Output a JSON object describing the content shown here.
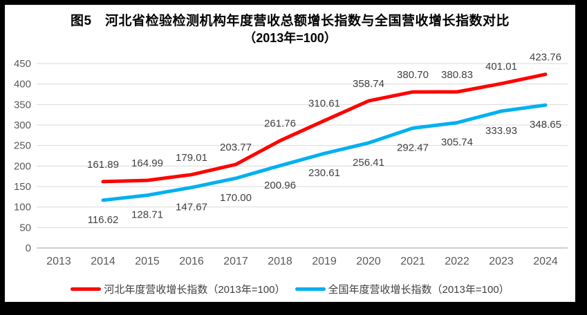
{
  "window": {
    "frame_color": "#000000",
    "chart_background": "#ffffff"
  },
  "title": {
    "line1": "图5　河北省检验检测机构年度营收总额增长指数与全国营收增长指数对比",
    "line2": "（2013年=100）"
  },
  "chart_data": {
    "type": "line",
    "categories": [
      "2013",
      "2014",
      "2015",
      "2016",
      "2017",
      "2018",
      "2019",
      "2020",
      "2021",
      "2022",
      "2023",
      "2024"
    ],
    "ylim": [
      0,
      450
    ],
    "y_ticks": [
      0,
      50,
      100,
      150,
      200,
      250,
      300,
      350,
      400,
      450
    ],
    "grid": true,
    "legend_position": "bottom",
    "series": [
      {
        "key": "hebei",
        "name": "河北年度营收增长指数（2013年=100）",
        "color": "#FF0000",
        "first_category_index": 1,
        "values": [
          161.89,
          164.99,
          179.01,
          203.77,
          261.76,
          310.61,
          358.74,
          380.7,
          380.83,
          401.01,
          423.76
        ],
        "labels": [
          "161.89",
          "164.99",
          "179.01",
          "203.77",
          "261.76",
          "310.61",
          "358.74",
          "380.70",
          "380.83",
          "401.01",
          "423.76"
        ],
        "label_position": "above"
      },
      {
        "key": "national",
        "name": "全国年度营收增长指数（2013年=100）",
        "color": "#00B0F0",
        "first_category_index": 1,
        "values": [
          116.62,
          128.71,
          147.67,
          170.0,
          200.96,
          230.61,
          256.41,
          292.47,
          305.74,
          333.93,
          348.65
        ],
        "labels": [
          "116.62",
          "128.71",
          "147.67",
          "170.00",
          "200.96",
          "230.61",
          "256.41",
          "292.47",
          "305.74",
          "333.93",
          "348.65"
        ],
        "label_position": "below"
      }
    ]
  },
  "style": {
    "grid_color": "#D9D9D9",
    "axis_color": "#BFBFBF",
    "tick_label_color": "#595959",
    "data_label_color": "#404040",
    "title_color": "#000000"
  }
}
